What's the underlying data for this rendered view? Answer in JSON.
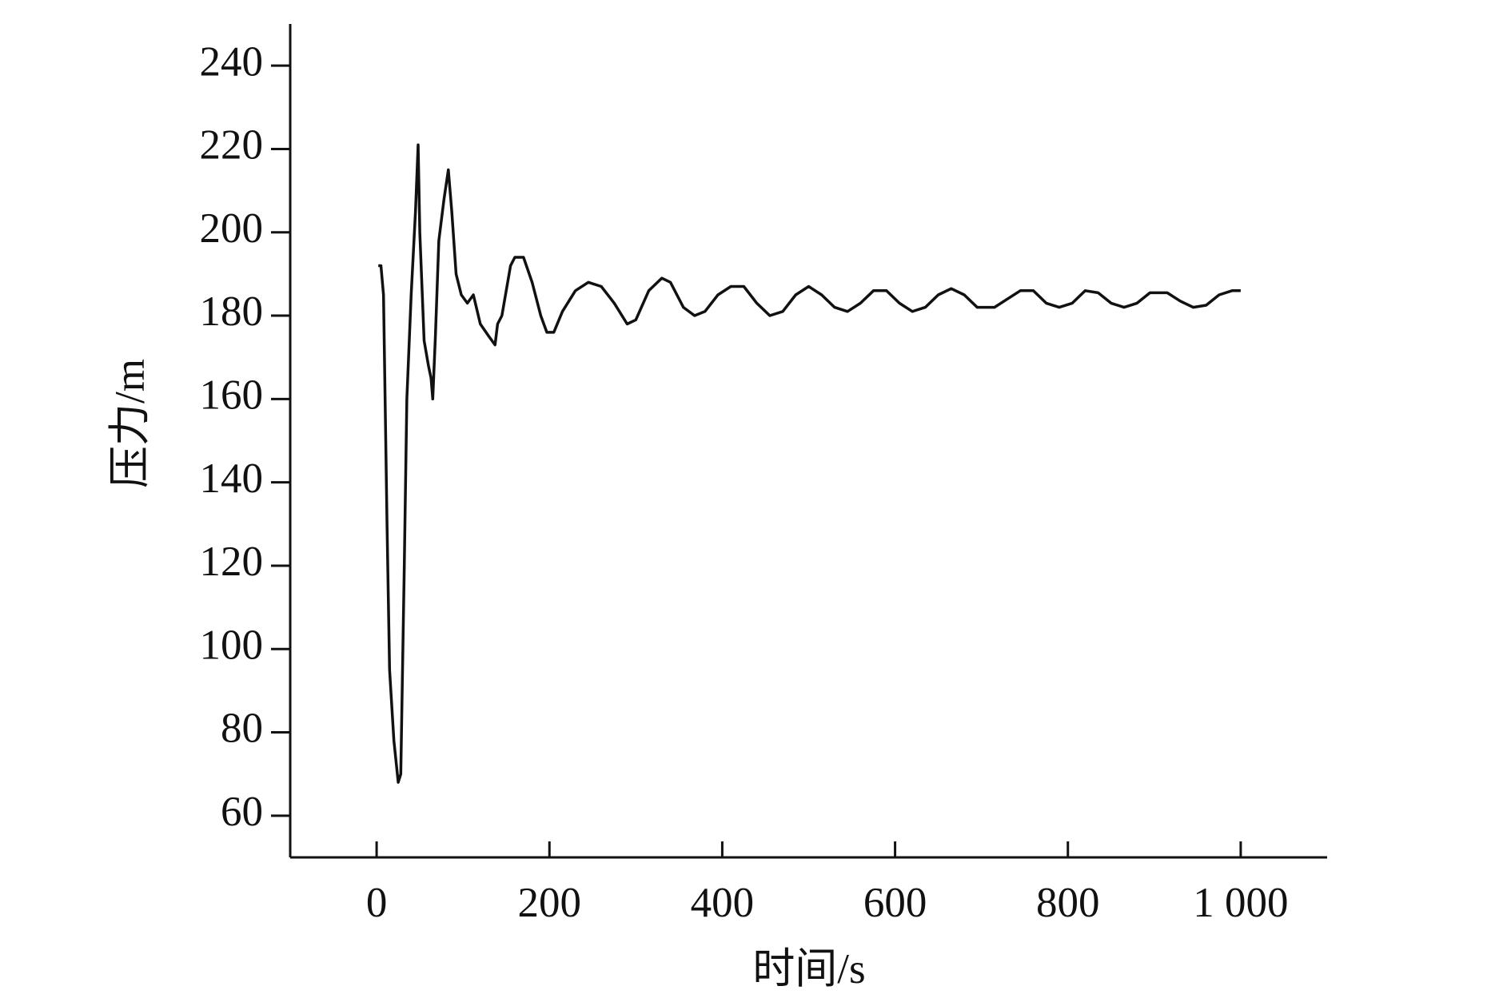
{
  "chart_data": {
    "type": "line",
    "xlabel": "时间/s",
    "ylabel": "压力/m",
    "xlim": [
      -100,
      1100
    ],
    "ylim": [
      50,
      250
    ],
    "xticks": [
      0,
      200,
      400,
      600,
      {
        "value": 800,
        "label": "800"
      },
      {
        "value": 1000,
        "label": "1 000"
      }
    ],
    "yticks": [
      60,
      80,
      100,
      120,
      140,
      160,
      180,
      200,
      220,
      240
    ],
    "color": "#111111",
    "x": [
      2,
      5,
      8,
      12,
      15,
      20,
      25,
      28,
      32,
      35,
      40,
      45,
      48,
      50,
      55,
      60,
      63,
      65,
      68,
      72,
      78,
      83,
      87,
      92,
      98,
      105,
      112,
      120,
      130,
      137,
      140,
      145,
      155,
      160,
      170,
      180,
      190,
      197,
      205,
      215,
      230,
      245,
      260,
      275,
      290,
      300,
      315,
      330,
      340,
      355,
      368,
      380,
      395,
      410,
      425,
      440,
      455,
      470,
      485,
      500,
      515,
      530,
      545,
      560,
      575,
      590,
      605,
      620,
      635,
      650,
      665,
      680,
      695,
      715,
      730,
      745,
      760,
      775,
      790,
      805,
      820,
      835,
      850,
      865,
      880,
      895,
      915,
      930,
      945,
      960,
      975,
      990,
      1000
    ],
    "values": [
      192,
      192,
      185,
      130,
      95,
      78,
      68,
      70,
      120,
      160,
      185,
      205,
      221,
      200,
      174,
      168,
      165,
      160,
      175,
      198,
      208,
      215,
      205,
      190,
      185,
      183,
      185,
      178,
      175,
      173,
      178,
      180,
      192,
      194,
      194,
      188,
      180,
      176,
      176,
      181,
      186,
      188,
      187,
      183,
      178,
      179,
      186,
      189,
      188,
      182,
      180,
      181,
      185,
      187,
      187,
      183,
      180,
      181,
      185,
      187,
      185,
      182,
      181,
      183,
      186,
      186,
      183,
      181,
      182,
      185,
      186.5,
      185,
      182,
      182,
      184,
      186,
      186,
      183,
      182,
      183,
      186,
      185.5,
      183,
      182,
      183,
      185.5,
      185.5,
      183.5,
      182,
      182.5,
      185,
      186,
      186
    ]
  }
}
